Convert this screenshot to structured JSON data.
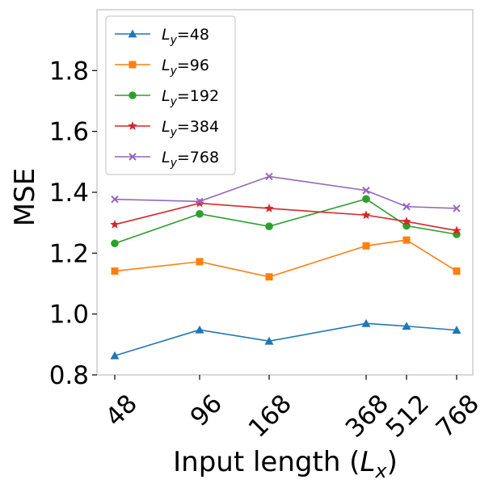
{
  "chart_data": {
    "type": "line",
    "x": [
      48,
      96,
      168,
      368,
      512,
      768
    ],
    "x_ticklabels": [
      "48",
      "96",
      "168",
      "368",
      "512",
      "768"
    ],
    "xlabel": {
      "text": "Input length (",
      "sym": "L",
      "sub": "x",
      "close": ")"
    },
    "ylabel": "MSE",
    "ylim": [
      0.8,
      2.0
    ],
    "yticks": [
      0.8,
      1.0,
      1.2,
      1.4,
      1.6,
      1.8
    ],
    "y_ticklabels": [
      "0.8",
      "1.0",
      "1.2",
      "1.4",
      "1.6",
      "1.8"
    ],
    "grid": false,
    "legend_position": "top-left",
    "series": [
      {
        "name": "L_y=48",
        "legend": {
          "sym": "L",
          "sub": "y",
          "rest": "=48"
        },
        "color": "#1f77b4",
        "marker": "triangle",
        "values": [
          0.863,
          0.948,
          0.911,
          0.969,
          0.96,
          0.947
        ]
      },
      {
        "name": "L_y=96",
        "legend": {
          "sym": "L",
          "sub": "y",
          "rest": "=96"
        },
        "color": "#ff7f0e",
        "marker": "square",
        "values": [
          1.141,
          1.172,
          1.122,
          1.224,
          1.243,
          1.141
        ]
      },
      {
        "name": "L_y=192",
        "legend": {
          "sym": "L",
          "sub": "y",
          "rest": "=192"
        },
        "color": "#2ca02c",
        "marker": "circle",
        "values": [
          1.232,
          1.329,
          1.288,
          1.378,
          1.29,
          1.262
        ]
      },
      {
        "name": "L_y=384",
        "legend": {
          "sym": "L",
          "sub": "y",
          "rest": "=384"
        },
        "color": "#d62728",
        "marker": "star",
        "values": [
          1.294,
          1.364,
          1.347,
          1.325,
          1.304,
          1.274
        ]
      },
      {
        "name": "L_y=768",
        "legend": {
          "sym": "L",
          "sub": "y",
          "rest": "=768"
        },
        "color": "#9467bd",
        "marker": "x",
        "values": [
          1.377,
          1.37,
          1.452,
          1.406,
          1.353,
          1.347
        ]
      }
    ]
  }
}
